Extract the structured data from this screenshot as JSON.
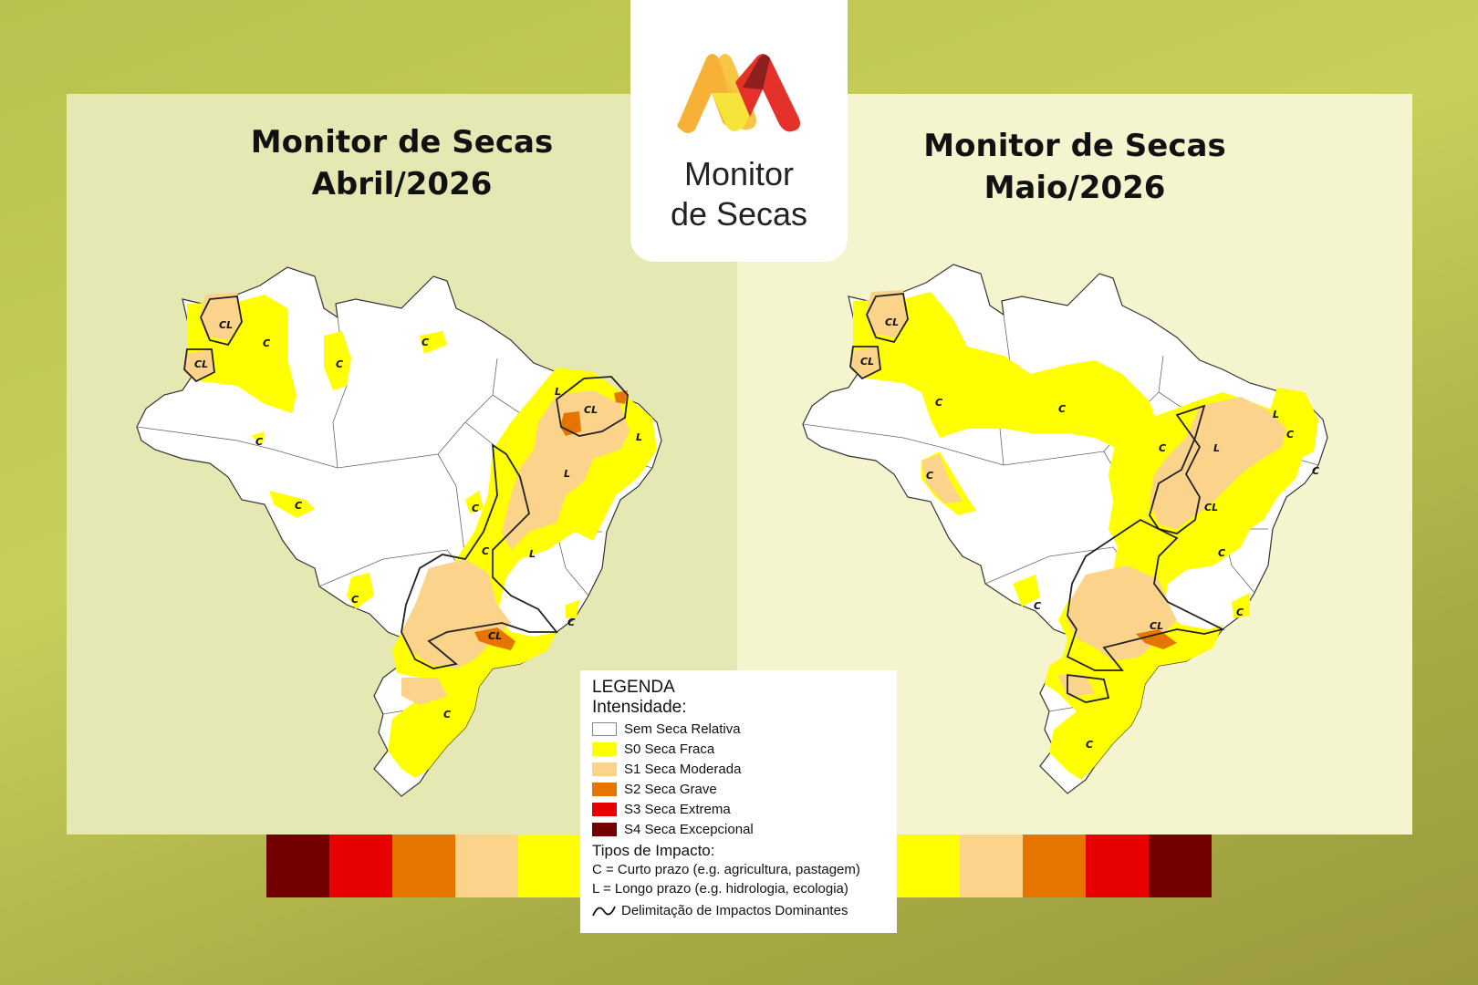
{
  "panels": {
    "left": {
      "title_line1": "Monitor de Secas",
      "title_line2": "Abril/2026"
    },
    "right": {
      "title_line1": "Monitor de Secas",
      "title_line2": "Maio/2026"
    }
  },
  "logo": {
    "line1": "Monitor",
    "line2": "de Secas"
  },
  "legend": {
    "title": "LEGENDA",
    "subtitle": "Intensidade:",
    "items": [
      {
        "label": "Sem Seca Relativa",
        "color": "#ffffff"
      },
      {
        "label": "S0 Seca Fraca",
        "color": "#ffff00"
      },
      {
        "label": "S1 Seca Moderada",
        "color": "#fcd38a"
      },
      {
        "label": "S2 Seca Grave",
        "color": "#e67500"
      },
      {
        "label": "S3 Seca Extrema",
        "color": "#e60000"
      },
      {
        "label": "S4 Seca Excepcional",
        "color": "#730000"
      }
    ],
    "impact_title": "Tipos de Impacto:",
    "impact_short": "C = Curto prazo (e.g. agricultura, pastagem)",
    "impact_long": "L = Longo prazo (e.g. hidrologia, ecologia)",
    "impact_line": "Delimitação de Impactos Dominantes"
  },
  "map_labels": {
    "left": [
      "CL",
      "C",
      "CL",
      "C",
      "C",
      "C",
      "C",
      "CL",
      "L",
      "L",
      "L",
      "C",
      "C",
      "L",
      "C",
      "C",
      "CL",
      "C"
    ],
    "right": [
      "CL",
      "CL",
      "C",
      "C",
      "C",
      "L",
      "L",
      "C",
      "CL",
      "C",
      "C",
      "C",
      "CL",
      "C",
      "C",
      "C"
    ]
  },
  "colors": {
    "none": "#ffffff",
    "s0": "#ffff00",
    "s1": "#fcd38a",
    "s2": "#e67500",
    "s3": "#e60000",
    "s4": "#730000"
  }
}
